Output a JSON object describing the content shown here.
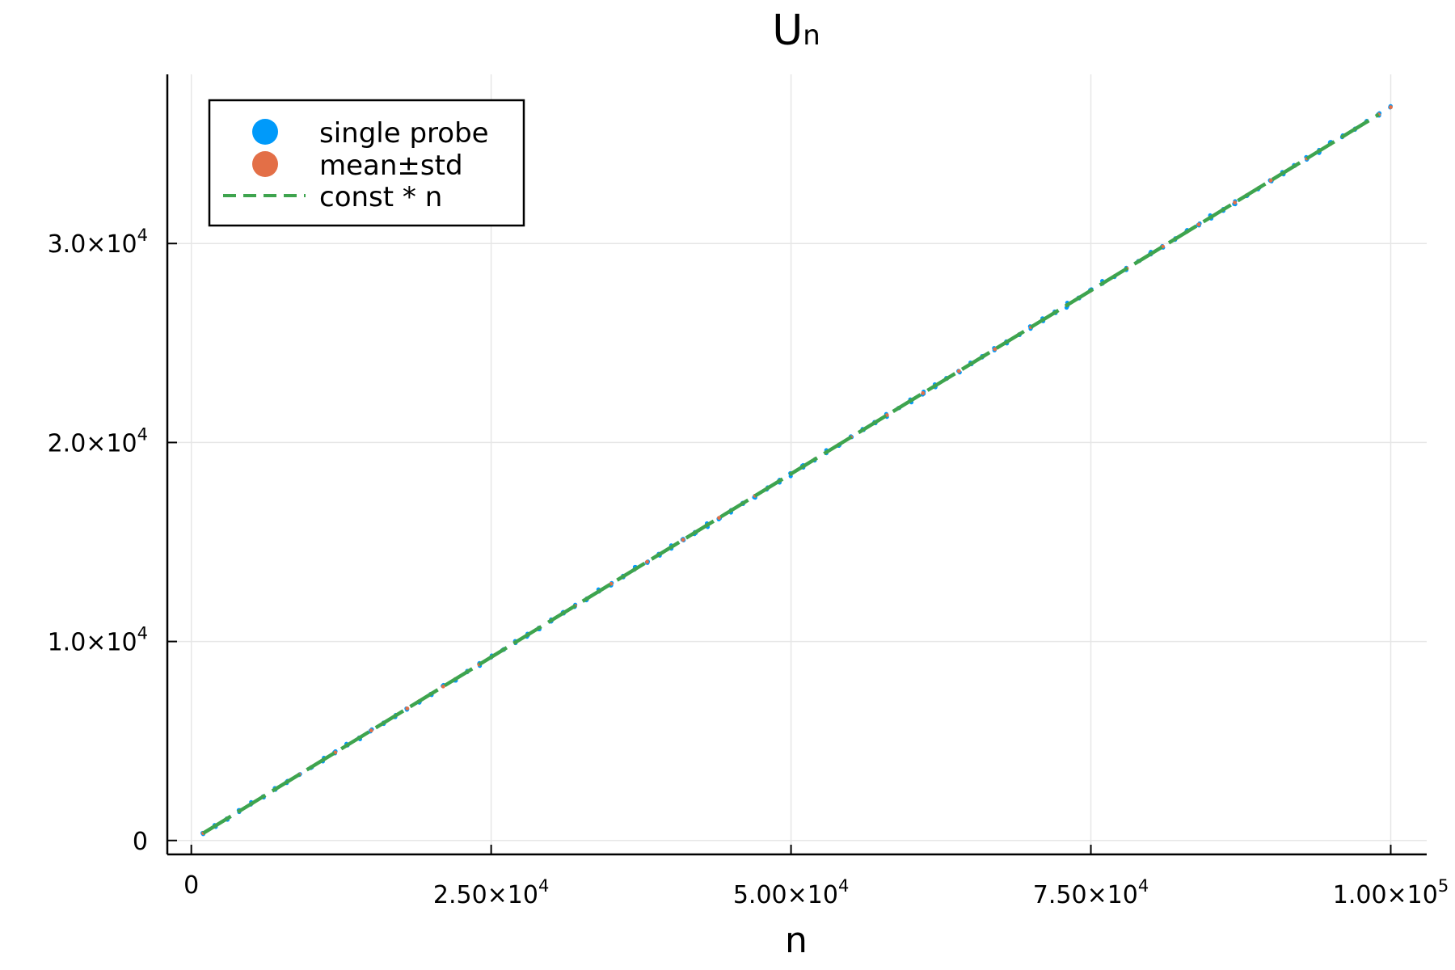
{
  "chart_data": {
    "type": "scatter",
    "title": "U",
    "title_subscript": "n",
    "xlabel": "n",
    "ylabel": "",
    "xlim": [
      -2000,
      103000
    ],
    "ylim": [
      -700,
      38500
    ],
    "grid": true,
    "legend_position": "top-left",
    "x_ticks": [
      {
        "value": 0,
        "label": "0",
        "exp": ""
      },
      {
        "value": 25000,
        "label": "2.50×10",
        "exp": "4"
      },
      {
        "value": 50000,
        "label": "5.00×10",
        "exp": "4"
      },
      {
        "value": 75000,
        "label": "7.50×10",
        "exp": "4"
      },
      {
        "value": 100000,
        "label": "1.00×10",
        "exp": "5"
      }
    ],
    "y_ticks": [
      {
        "value": 0,
        "label": "0",
        "exp": ""
      },
      {
        "value": 10000,
        "label": "1.0×10",
        "exp": "4"
      },
      {
        "value": 20000,
        "label": "2.0×10",
        "exp": "4"
      },
      {
        "value": 30000,
        "label": "3.0×10",
        "exp": "4"
      }
    ],
    "slope": 0.3685,
    "x_start": 1000,
    "x_end": 100000,
    "x_step": 1000,
    "error_spread": 90,
    "series": [
      {
        "name": "single probe",
        "kind": "scatter",
        "color": "#009AFA"
      },
      {
        "name": "mean±std",
        "kind": "errorbar",
        "color": "#E36F47"
      },
      {
        "name": "const * n",
        "kind": "dashed-line",
        "color": "#3EA44E"
      }
    ]
  }
}
